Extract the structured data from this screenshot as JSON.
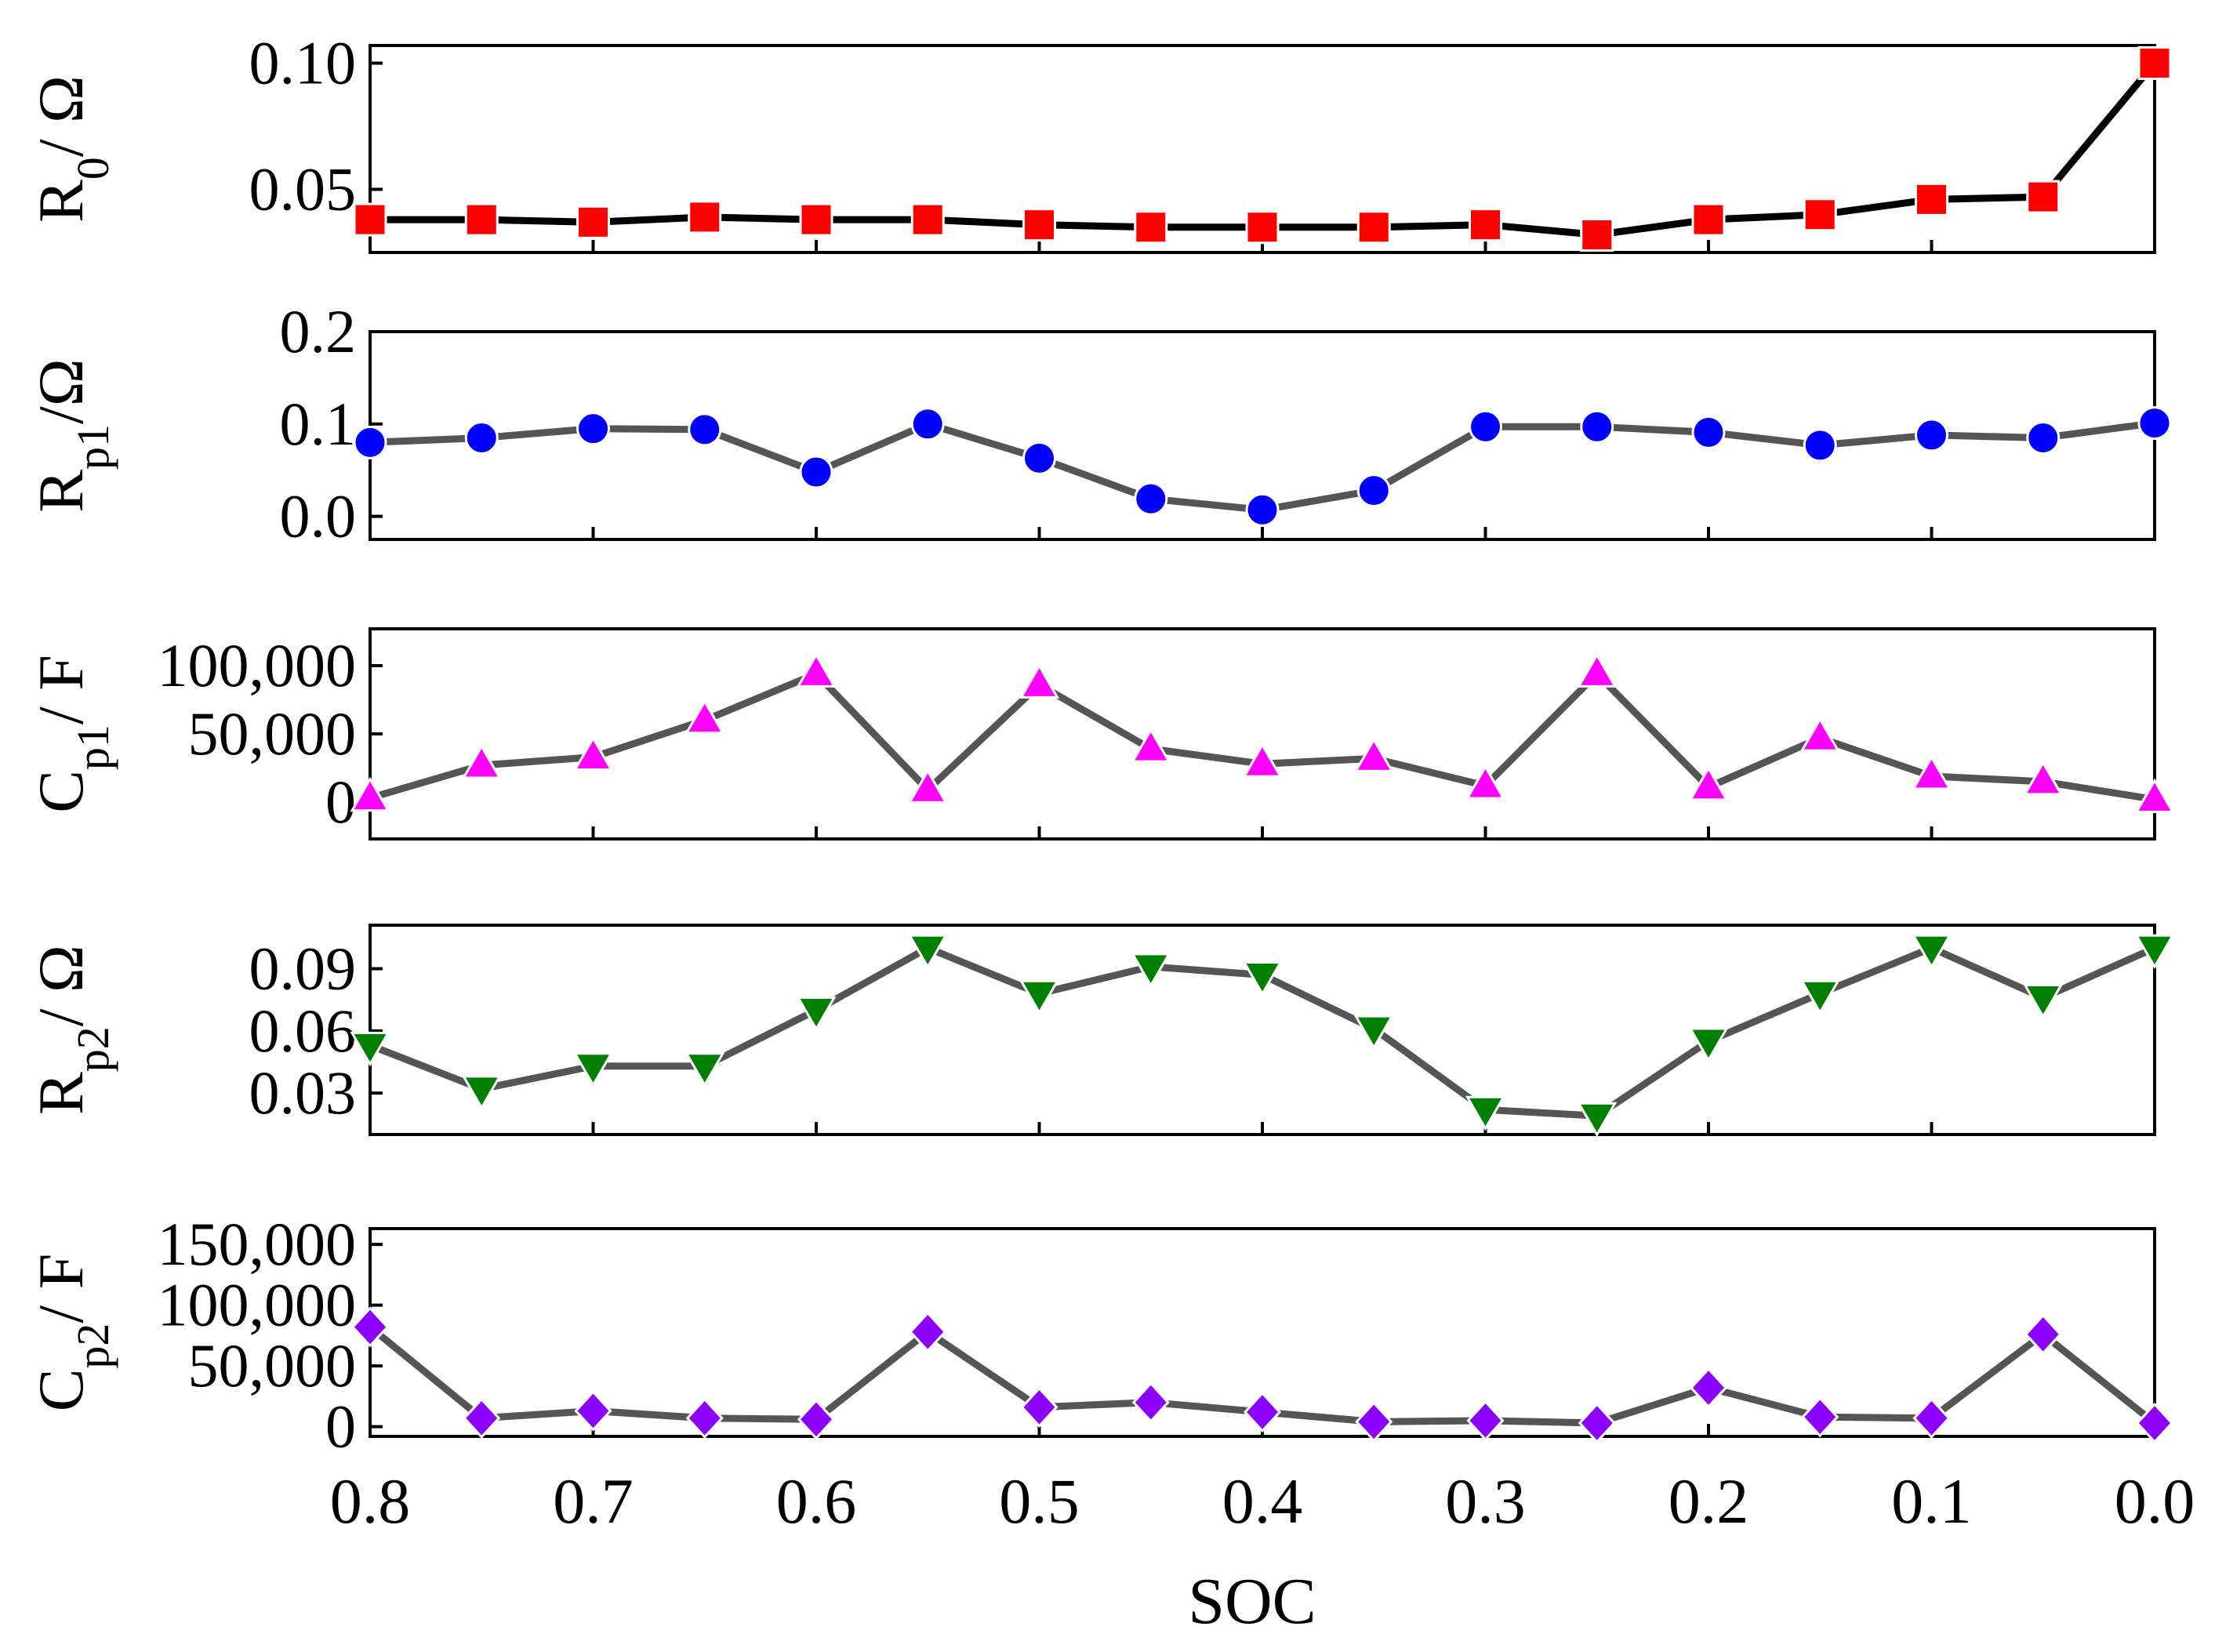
{
  "chart_data": [
    {
      "type": "line",
      "id": "r0",
      "ylabel_main": "R",
      "ylabel_sub": "0",
      "ylabel_rest": "/ Ω",
      "x": [
        0.8,
        0.75,
        0.7,
        0.65,
        0.6,
        0.55,
        0.5,
        0.45,
        0.4,
        0.35,
        0.3,
        0.25,
        0.2,
        0.15,
        0.1,
        0.05,
        0.0
      ],
      "values": [
        0.038,
        0.038,
        0.037,
        0.039,
        0.038,
        0.038,
        0.036,
        0.035,
        0.035,
        0.035,
        0.036,
        0.032,
        0.038,
        0.04,
        0.046,
        0.047,
        0.1
      ],
      "ylim": [
        0.025,
        0.107
      ],
      "yticks": [
        0.05,
        0.1
      ],
      "ytick_labels": [
        "0.05",
        "0.10"
      ],
      "marker": "square",
      "marker_color": "#ff0000",
      "line_color": "#000000"
    },
    {
      "type": "line",
      "id": "rp1",
      "ylabel_main": "R",
      "ylabel_sub": "p1",
      "ylabel_rest": "/Ω",
      "x": [
        0.8,
        0.75,
        0.7,
        0.65,
        0.6,
        0.55,
        0.5,
        0.45,
        0.4,
        0.35,
        0.3,
        0.25,
        0.2,
        0.15,
        0.1,
        0.05,
        0.0
      ],
      "values": [
        0.08,
        0.085,
        0.095,
        0.094,
        0.048,
        0.1,
        0.063,
        0.019,
        0.007,
        0.028,
        0.097,
        0.097,
        0.091,
        0.077,
        0.088,
        0.085,
        0.101
      ],
      "ylim": [
        -0.025,
        0.2
      ],
      "yticks": [
        0.0,
        0.1,
        0.2
      ],
      "ytick_labels": [
        "0.0",
        "0.1",
        "0.2"
      ],
      "marker": "circle",
      "marker_color": "#0000ff",
      "line_color": "#555555"
    },
    {
      "type": "line",
      "id": "cp1",
      "ylabel_main": "C",
      "ylabel_sub": "p1",
      "ylabel_rest": "/ F",
      "x": [
        0.8,
        0.75,
        0.7,
        0.65,
        0.6,
        0.55,
        0.5,
        0.45,
        0.4,
        0.35,
        0.3,
        0.25,
        0.2,
        0.15,
        0.1,
        0.05,
        0.0
      ],
      "values": [
        3000,
        27000,
        33000,
        60000,
        94000,
        9000,
        86000,
        39000,
        28000,
        32000,
        12000,
        94000,
        11000,
        47000,
        19000,
        15000,
        2000
      ],
      "ylim": [
        -27000,
        127000
      ],
      "yticks": [
        0,
        50000,
        100000
      ],
      "ytick_labels": [
        "0",
        "50,000",
        "100,000"
      ],
      "marker": "triangle-up",
      "marker_color": "#ff00ff",
      "line_color": "#555555"
    },
    {
      "type": "line",
      "id": "rp2",
      "ylabel_main": "R",
      "ylabel_sub": "p2",
      "ylabel_rest": "/ Ω",
      "x": [
        0.8,
        0.75,
        0.7,
        0.65,
        0.6,
        0.55,
        0.5,
        0.45,
        0.4,
        0.35,
        0.3,
        0.25,
        0.2,
        0.15,
        0.1,
        0.05,
        0.0
      ],
      "values": [
        0.053,
        0.032,
        0.043,
        0.043,
        0.07,
        0.1,
        0.078,
        0.091,
        0.087,
        0.061,
        0.022,
        0.019,
        0.055,
        0.078,
        0.1,
        0.076,
        0.1
      ],
      "ylim": [
        0.01,
        0.111
      ],
      "yticks": [
        0.03,
        0.06,
        0.09
      ],
      "ytick_labels": [
        "0.03",
        "0.06",
        "0.09"
      ],
      "marker": "triangle-down",
      "marker_color": "#008000",
      "line_color": "#555555"
    },
    {
      "type": "line",
      "id": "cp2",
      "ylabel_main": "C",
      "ylabel_sub": "p2",
      "ylabel_rest": "/ F",
      "x": [
        0.8,
        0.75,
        0.7,
        0.65,
        0.6,
        0.55,
        0.5,
        0.45,
        0.4,
        0.35,
        0.3,
        0.25,
        0.2,
        0.15,
        0.1,
        0.05,
        0.0
      ],
      "values": [
        82000,
        7000,
        13000,
        7000,
        6000,
        78000,
        16000,
        20000,
        12000,
        4000,
        5000,
        3000,
        32000,
        8000,
        7000,
        76000,
        3000
      ],
      "ylim": [
        -8000,
        163000
      ],
      "yticks": [
        0,
        50000,
        100000,
        150000
      ],
      "ytick_labels": [
        "0",
        "50,000",
        "100,000",
        "150,000"
      ],
      "marker": "diamond",
      "marker_color": "#8b00ff",
      "line_color": "#555555"
    }
  ],
  "xaxis": {
    "label": "SOC",
    "xlim": [
      0.8,
      0.0
    ],
    "ticks": [
      0.8,
      0.7,
      0.6,
      0.5,
      0.4,
      0.3,
      0.2,
      0.1,
      0.0
    ],
    "tick_labels": [
      "0.8",
      "0.7",
      "0.6",
      "0.5",
      "0.4",
      "0.3",
      "0.2",
      "0.1",
      "0.0"
    ]
  }
}
